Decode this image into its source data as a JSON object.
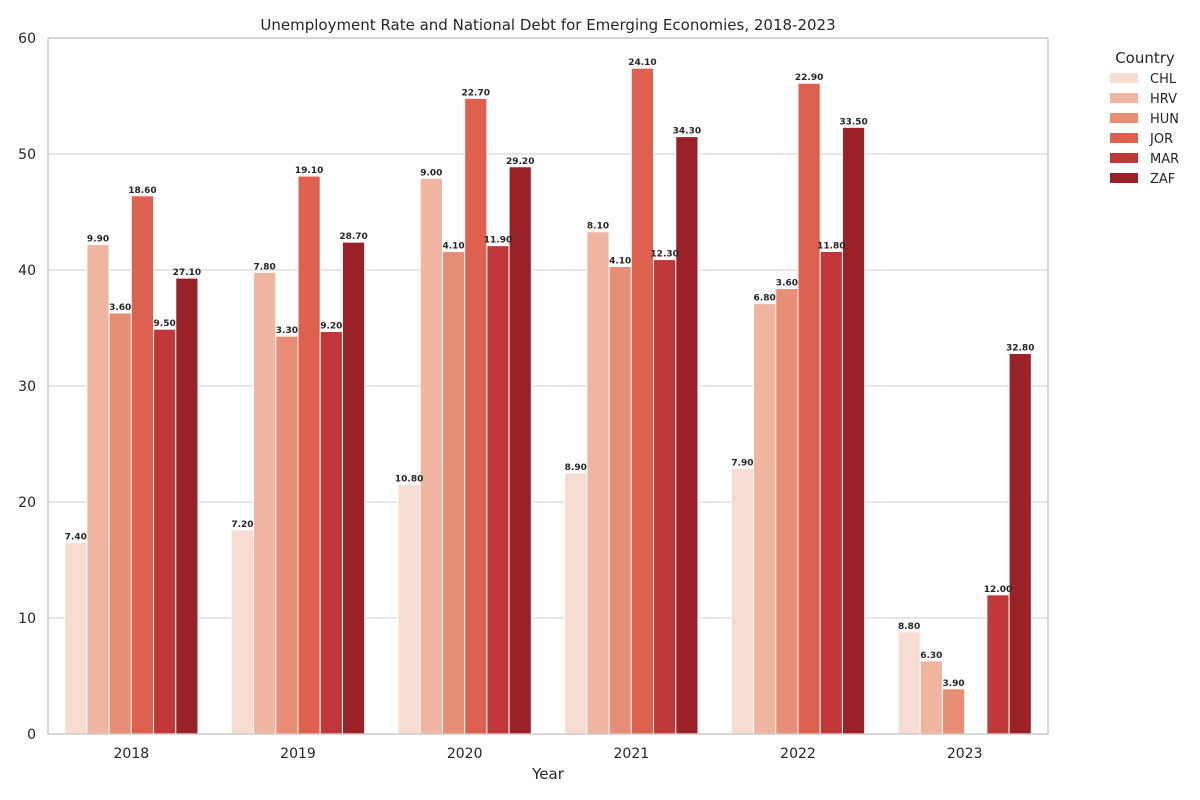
{
  "chart_data": {
    "type": "bar",
    "title": "Unemployment Rate and National Debt for Emerging Economies, 2018-2023",
    "xlabel": "Year",
    "ylabel": "",
    "ylim": [
      0,
      60
    ],
    "yticks": [
      0,
      10,
      20,
      30,
      40,
      50,
      60
    ],
    "grid": true,
    "legend": {
      "title": "Country",
      "placement": "outside-top-right"
    },
    "categories": [
      "2018",
      "2019",
      "2020",
      "2021",
      "2022",
      "2023"
    ],
    "series": [
      {
        "name": "CHL",
        "color": "#f7dcd2",
        "values": [
          16.5,
          17.6,
          21.5,
          22.5,
          22.9,
          8.8
        ],
        "labels": [
          "7.40",
          "7.20",
          "10.80",
          "8.90",
          "7.90",
          "8.80"
        ]
      },
      {
        "name": "HRV",
        "color": "#f0b5a1",
        "values": [
          42.2,
          39.8,
          47.9,
          43.3,
          37.1,
          6.3
        ],
        "labels": [
          "9.90",
          "7.80",
          "9.00",
          "8.10",
          "6.80",
          "6.30"
        ]
      },
      {
        "name": "HUN",
        "color": "#e88e76",
        "values": [
          36.3,
          34.3,
          41.6,
          40.3,
          38.4,
          3.9
        ],
        "labels": [
          "3.60",
          "3.30",
          "4.10",
          "4.10",
          "3.60",
          "3.90"
        ]
      },
      {
        "name": "JOR",
        "color": "#de614f",
        "values": [
          46.4,
          48.1,
          54.8,
          57.4,
          56.1,
          null
        ],
        "labels": [
          "18.60",
          "19.10",
          "22.70",
          "24.10",
          "22.90",
          ""
        ]
      },
      {
        "name": "MAR",
        "color": "#c0373a",
        "values": [
          34.9,
          34.7,
          42.1,
          40.9,
          41.6,
          12.0
        ],
        "labels": [
          "9.50",
          "9.20",
          "11.90",
          "12.30",
          "11.80",
          "12.00"
        ]
      },
      {
        "name": "ZAF",
        "color": "#9a2128",
        "values": [
          39.3,
          42.4,
          48.9,
          51.5,
          52.3,
          32.8
        ],
        "labels": [
          "27.10",
          "28.70",
          "29.20",
          "34.30",
          "33.50",
          "32.80"
        ]
      }
    ]
  }
}
